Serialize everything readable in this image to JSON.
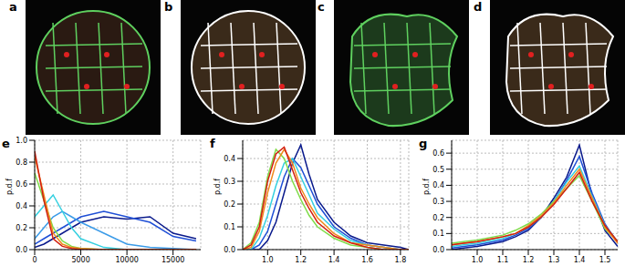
{
  "images": [
    {
      "label": "a"
    },
    {
      "label": "b"
    },
    {
      "label": "c"
    },
    {
      "label": "d"
    }
  ],
  "chart_data": [
    {
      "type": "line",
      "title": "e",
      "y_label": "p.d.f",
      "grid": true,
      "x": [
        0,
        1000,
        2000,
        3000,
        4000,
        5000,
        7500,
        10000,
        12500,
        15000,
        17500
      ],
      "xlim": [
        0,
        18000
      ],
      "xticks": [
        0,
        5000,
        10000,
        15000
      ],
      "ylim": [
        0,
        1.0
      ],
      "yticks": [
        {
          "value": 0,
          "label": "0.0"
        },
        0.2,
        0.4,
        0.6,
        0.8,
        {
          "value": 1,
          "label": "1.0"
        }
      ],
      "series": [
        {
          "color": "#0a1a8c",
          "values": [
            0.02,
            0.05,
            0.1,
            0.15,
            0.2,
            0.25,
            0.3,
            0.28,
            0.3,
            0.15,
            0.1
          ]
        },
        {
          "color": "#1f4fd6",
          "values": [
            0.05,
            0.1,
            0.15,
            0.2,
            0.25,
            0.3,
            0.35,
            0.3,
            0.25,
            0.12,
            0.08
          ]
        },
        {
          "color": "#3b9be8",
          "values": [
            0.1,
            0.2,
            0.3,
            0.35,
            0.3,
            0.25,
            0.15,
            0.05,
            0.02,
            0.01,
            0
          ]
        },
        {
          "color": "#35d0e0",
          "values": [
            0.3,
            0.4,
            0.5,
            0.35,
            0.2,
            0.1,
            0.02,
            0,
            0,
            0,
            0
          ]
        },
        {
          "color": "#7fdc4a",
          "values": [
            0.7,
            0.45,
            0.2,
            0.08,
            0.03,
            0.01,
            0,
            0,
            0,
            0,
            0
          ]
        },
        {
          "color": "#f08a1c",
          "values": [
            0.85,
            0.5,
            0.15,
            0.05,
            0.02,
            0.01,
            0,
            0,
            0,
            0,
            0
          ]
        },
        {
          "color": "#d21f10",
          "values": [
            0.9,
            0.45,
            0.1,
            0.03,
            0.01,
            0,
            0,
            0,
            0,
            0,
            0
          ]
        }
      ]
    },
    {
      "type": "line",
      "title": "f",
      "y_label": "p.d.f",
      "grid": true,
      "x": [
        0.85,
        0.9,
        0.95,
        1.0,
        1.05,
        1.1,
        1.15,
        1.2,
        1.25,
        1.3,
        1.4,
        1.5,
        1.6,
        1.7,
        1.8,
        1.85
      ],
      "xlim": [
        0.85,
        1.85
      ],
      "xticks": [
        {
          "value": 1,
          "label": "1.0"
        },
        1.2,
        1.4,
        1.6,
        1.8
      ],
      "ylim": [
        0,
        0.48
      ],
      "yticks": [
        {
          "value": 0,
          "label": "0.0"
        },
        0.1,
        0.2,
        0.3,
        0.4
      ],
      "series": [
        {
          "color": "#0a1a8c",
          "values": [
            0,
            0,
            0,
            0.04,
            0.12,
            0.25,
            0.38,
            0.46,
            0.33,
            0.22,
            0.12,
            0.06,
            0.03,
            0.02,
            0.01,
            0
          ]
        },
        {
          "color": "#1f4fd6",
          "values": [
            0,
            0,
            0.02,
            0.08,
            0.2,
            0.32,
            0.4,
            0.36,
            0.28,
            0.2,
            0.1,
            0.05,
            0.02,
            0.01,
            0,
            0
          ]
        },
        {
          "color": "#35d0e0",
          "values": [
            0,
            0,
            0.05,
            0.15,
            0.28,
            0.38,
            0.4,
            0.32,
            0.24,
            0.16,
            0.09,
            0.04,
            0.02,
            0.01,
            0,
            0
          ]
        },
        {
          "color": "#7fdc4a",
          "values": [
            0,
            0.03,
            0.12,
            0.32,
            0.44,
            0.4,
            0.3,
            0.22,
            0.15,
            0.1,
            0.05,
            0.02,
            0.01,
            0,
            0,
            0
          ]
        },
        {
          "color": "#f08a1c",
          "values": [
            0,
            0.01,
            0.08,
            0.25,
            0.38,
            0.44,
            0.38,
            0.27,
            0.2,
            0.14,
            0.07,
            0.03,
            0.02,
            0.01,
            0,
            0
          ]
        },
        {
          "color": "#d21f10",
          "values": [
            0,
            0.02,
            0.1,
            0.3,
            0.42,
            0.45,
            0.35,
            0.25,
            0.18,
            0.12,
            0.06,
            0.03,
            0.01,
            0,
            0,
            0
          ]
        }
      ]
    },
    {
      "type": "line",
      "title": "g",
      "y_label": "p.d.f",
      "grid": true,
      "x": [
        0.9,
        1.0,
        1.1,
        1.15,
        1.2,
        1.25,
        1.3,
        1.35,
        1.4,
        1.45,
        1.5,
        1.55
      ],
      "xlim": [
        0.9,
        1.55
      ],
      "xticks": [
        {
          "value": 1,
          "label": "1.0"
        },
        1.1,
        1.2,
        1.3,
        1.4,
        1.5
      ],
      "ylim": [
        0,
        0.68
      ],
      "yticks": [
        {
          "value": 0,
          "label": "0.0"
        },
        0.1,
        0.2,
        0.3,
        0.4,
        0.5,
        0.6
      ],
      "series": [
        {
          "color": "#0a1a8c",
          "values": [
            0,
            0.02,
            0.05,
            0.08,
            0.12,
            0.2,
            0.32,
            0.45,
            0.65,
            0.33,
            0.12,
            0.02
          ]
        },
        {
          "color": "#1f4fd6",
          "values": [
            0.01,
            0.03,
            0.06,
            0.09,
            0.13,
            0.2,
            0.3,
            0.43,
            0.58,
            0.35,
            0.16,
            0.04
          ]
        },
        {
          "color": "#35d0e0",
          "values": [
            0.02,
            0.04,
            0.07,
            0.1,
            0.14,
            0.2,
            0.3,
            0.42,
            0.52,
            0.33,
            0.15,
            0.05
          ]
        },
        {
          "color": "#7fdc4a",
          "values": [
            0.04,
            0.06,
            0.09,
            0.12,
            0.16,
            0.22,
            0.3,
            0.38,
            0.46,
            0.3,
            0.13,
            0.05
          ]
        },
        {
          "color": "#f08a1c",
          "values": [
            0.03,
            0.05,
            0.08,
            0.1,
            0.15,
            0.21,
            0.29,
            0.4,
            0.5,
            0.32,
            0.14,
            0.04
          ]
        },
        {
          "color": "#d21f10",
          "values": [
            0.03,
            0.05,
            0.08,
            0.1,
            0.14,
            0.2,
            0.28,
            0.38,
            0.48,
            0.3,
            0.15,
            0.05
          ]
        }
      ]
    }
  ]
}
